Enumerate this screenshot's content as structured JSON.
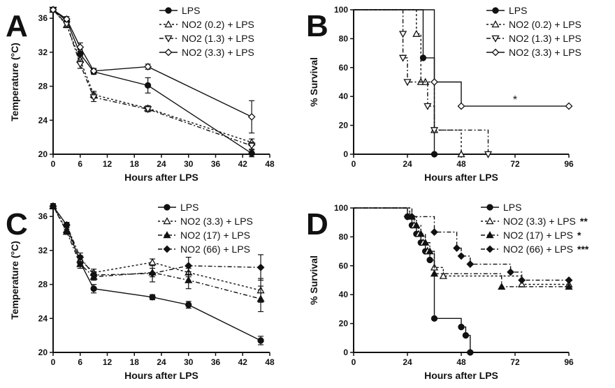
{
  "chart_data": [
    {
      "panel": "A",
      "type": "line",
      "xlabel": "Hours after LPS",
      "ylabel": "Temperature (°C)",
      "xlim": [
        0,
        48
      ],
      "ylim": [
        20,
        37
      ],
      "xticks": [
        0,
        6,
        12,
        18,
        24,
        30,
        36,
        42,
        48
      ],
      "yticks": [
        20,
        24,
        28,
        32,
        36
      ],
      "x": [
        0,
        3,
        6,
        9,
        21,
        44
      ],
      "legend_position": "top-right",
      "series": [
        {
          "name": "LPS",
          "style": "solid",
          "marker": "circle-filled",
          "values": [
            37,
            35.7,
            31.8,
            29.7,
            28.1,
            20.1
          ],
          "errors": [
            0.2,
            0.3,
            0.5,
            0.3,
            0.9,
            0.4
          ]
        },
        {
          "name": "NO2 (0.2) + LPS",
          "style": "dotted",
          "marker": "triangle-up-open",
          "values": [
            37,
            35.2,
            31.1,
            27,
            25.4,
            21.4
          ],
          "errors": [
            0.2,
            0.3,
            0.4,
            0.4,
            0.3,
            0.4
          ]
        },
        {
          "name": "NO2 (1.3) + LPS",
          "style": "dashdot",
          "marker": "triangle-down-open",
          "values": [
            37,
            35.3,
            30.6,
            26.7,
            25.3,
            21
          ],
          "errors": [
            0.2,
            0.3,
            0.5,
            0.5,
            0.3,
            0.4
          ]
        },
        {
          "name": "NO2 (3.3) + LPS",
          "style": "solid",
          "marker": "diamond-open",
          "values": [
            37,
            35.9,
            32.6,
            29.8,
            30.3,
            24.4
          ],
          "errors": [
            0.2,
            0.3,
            0.5,
            0.3,
            0.3,
            1.9
          ]
        }
      ]
    },
    {
      "panel": "B",
      "type": "line",
      "step": true,
      "xlabel": "Hours after LPS",
      "ylabel": "% Survival",
      "xlim": [
        0,
        96
      ],
      "ylim": [
        0,
        100
      ],
      "xticks": [
        0,
        24,
        48,
        72,
        96
      ],
      "yticks": [
        0,
        20,
        40,
        60,
        80,
        100
      ],
      "annotation": "*",
      "legend_position": "top-right",
      "series": [
        {
          "name": "LPS",
          "style": "solid",
          "marker": "circle-filled",
          "x": [
            0,
            31,
            36
          ],
          "values": [
            100,
            66.7,
            0
          ]
        },
        {
          "name": "NO2 (0.2) + LPS",
          "style": "dotted",
          "marker": "triangle-up-open",
          "x": [
            0,
            28,
            30,
            32,
            36,
            48
          ],
          "values": [
            100,
            83.3,
            50,
            50,
            16.7,
            0
          ]
        },
        {
          "name": "NO2 (1.3) + LPS",
          "style": "dashdot",
          "marker": "triangle-down-open",
          "x": [
            0,
            22,
            22,
            24,
            33,
            36,
            60
          ],
          "values": [
            100,
            83.3,
            66.7,
            50,
            33.3,
            16.7,
            0
          ]
        },
        {
          "name": "NO2 (3.3) + LPS",
          "style": "solid",
          "marker": "diamond-open",
          "x": [
            0,
            36,
            48,
            96
          ],
          "values": [
            100,
            50,
            33.3,
            33.3
          ]
        }
      ]
    },
    {
      "panel": "C",
      "type": "line",
      "xlabel": "Hours after LPS",
      "ylabel": "Temperature (°C)",
      "xlim": [
        0,
        48
      ],
      "ylim": [
        20,
        37
      ],
      "xticks": [
        0,
        6,
        12,
        18,
        24,
        30,
        36,
        42,
        48
      ],
      "yticks": [
        20,
        24,
        28,
        32,
        36
      ],
      "x": [
        0,
        3,
        6,
        9,
        22,
        30,
        46
      ],
      "legend_position": "top-right",
      "series": [
        {
          "name": "LPS",
          "style": "solid",
          "marker": "circle-filled",
          "values": [
            37.2,
            35,
            30.6,
            27.5,
            26.5,
            25.6,
            21.4
          ],
          "errors": [
            0.3,
            0.3,
            0.5,
            0.5,
            0.3,
            0.4,
            0.5
          ]
        },
        {
          "name": "NO2 (3.3) + LPS",
          "style": "dotted",
          "marker": "triangle-up-open",
          "values": [
            37.2,
            34.4,
            30.9,
            29.4,
            30.6,
            29.4,
            27.3
          ],
          "errors": [
            0.3,
            0.3,
            0.5,
            0.4,
            0.4,
            0.5,
            1.4
          ]
        },
        {
          "name": "NO2 (17) + LPS",
          "style": "dashdot",
          "marker": "triangle-up-filled",
          "values": [
            37.2,
            34.2,
            30.4,
            28.9,
            29.4,
            28.5,
            26.3
          ],
          "errors": [
            0.3,
            0.3,
            0.5,
            0.4,
            0.5,
            1.0,
            1.5
          ]
        },
        {
          "name": "NO2 (66) + LPS",
          "style": "dashdot",
          "marker": "diamond-filled",
          "values": [
            37.2,
            35,
            31.2,
            29.1,
            29.3,
            30.2,
            30
          ],
          "errors": [
            0.3,
            0.3,
            0.5,
            0.4,
            1.0,
            1.0,
            1.5
          ]
        }
      ]
    },
    {
      "panel": "D",
      "type": "line",
      "step": true,
      "xlabel": "Hours after LPS",
      "ylabel": "% Survival",
      "xlim": [
        0,
        96
      ],
      "ylim": [
        0,
        100
      ],
      "xticks": [
        0,
        24,
        48,
        72,
        96
      ],
      "yticks": [
        0,
        20,
        40,
        60,
        80,
        100
      ],
      "legend_position": "top-right",
      "series": [
        {
          "name": "LPS",
          "significance": "",
          "style": "solid",
          "marker": "circle-filled",
          "x": [
            0,
            24,
            26,
            28,
            30,
            32,
            34,
            36,
            48,
            50,
            52
          ],
          "values": [
            100,
            94,
            88,
            82,
            76,
            70,
            64,
            23.5,
            17.6,
            11.8,
            0
          ]
        },
        {
          "name": "NO2 (3.3) + LPS",
          "significance": "**",
          "style": "dotted",
          "marker": "triangle-up-open",
          "x": [
            0,
            25,
            27,
            29,
            31,
            33,
            36,
            40,
            75,
            96
          ],
          "values": [
            100,
            94,
            88,
            82,
            76,
            70,
            58.8,
            52.9,
            47.1,
            47.1
          ]
        },
        {
          "name": "NO2 (17) + LPS",
          "significance": "*",
          "style": "dashdot",
          "marker": "triangle-up-filled",
          "x": [
            0,
            26,
            28,
            30,
            32,
            34,
            36,
            66,
            96
          ],
          "values": [
            100,
            94,
            88,
            82,
            76,
            70,
            54.5,
            45.5,
            45.5
          ]
        },
        {
          "name": "NO2 (66) + LPS",
          "significance": "***",
          "style": "dashdot",
          "marker": "diamond-filled",
          "x": [
            0,
            24,
            26,
            36,
            46,
            48,
            52,
            70,
            75,
            96
          ],
          "values": [
            100,
            94,
            94,
            83.3,
            72.2,
            66.7,
            61.1,
            55.6,
            50,
            50
          ]
        }
      ]
    }
  ]
}
